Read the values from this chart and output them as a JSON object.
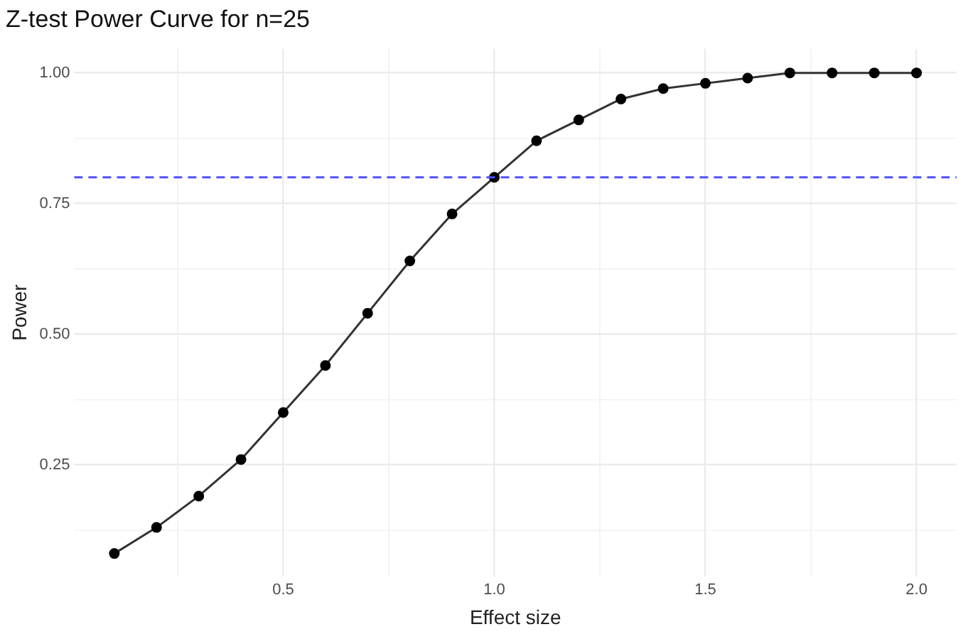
{
  "chart_data": {
    "type": "line",
    "title": "Z-test Power Curve for n=25",
    "xlabel": "Effect size",
    "ylabel": "Power",
    "x": [
      0.1,
      0.2,
      0.3,
      0.4,
      0.5,
      0.6,
      0.7,
      0.8,
      0.9,
      1.0,
      1.1,
      1.2,
      1.3,
      1.4,
      1.5,
      1.6,
      1.7,
      1.8,
      1.9,
      2.0
    ],
    "series": [
      {
        "color": "#000000",
        "values": [
          0.08,
          0.13,
          0.19,
          0.26,
          0.35,
          0.44,
          0.54,
          0.64,
          0.73,
          0.8,
          0.87,
          0.91,
          0.95,
          0.97,
          0.98,
          0.99,
          1.0,
          1.0,
          1.0,
          1.0
        ]
      }
    ],
    "xlim": [
      0.005,
      2.095
    ],
    "ylim": [
      0.036,
      1.046
    ],
    "xticks": [
      {
        "value": 0.25,
        "label": null
      },
      {
        "value": 0.5,
        "label": "0.5"
      },
      {
        "value": 0.75,
        "label": null
      },
      {
        "value": 1.0,
        "label": "1.0"
      },
      {
        "value": 1.25,
        "label": null
      },
      {
        "value": 1.5,
        "label": "1.5"
      },
      {
        "value": 1.75,
        "label": null
      },
      {
        "value": 2.0,
        "label": "2.0"
      }
    ],
    "yticks": [
      {
        "value": 0.125,
        "label": null
      },
      0.25,
      {
        "value": 0.375,
        "label": null
      },
      {
        "value": 0.5,
        "label": "0.50"
      },
      {
        "value": 0.625,
        "label": null
      },
      0.75,
      {
        "value": 0.875,
        "label": null
      },
      {
        "value": 1.0,
        "label": "1.00"
      }
    ],
    "ref_lines": [
      {
        "axis": "y",
        "value": 0.8,
        "color": "#5050ff",
        "line_style": "dashed"
      }
    ],
    "grid": true,
    "marker": "circle",
    "line_style": "solid",
    "legend": false
  }
}
